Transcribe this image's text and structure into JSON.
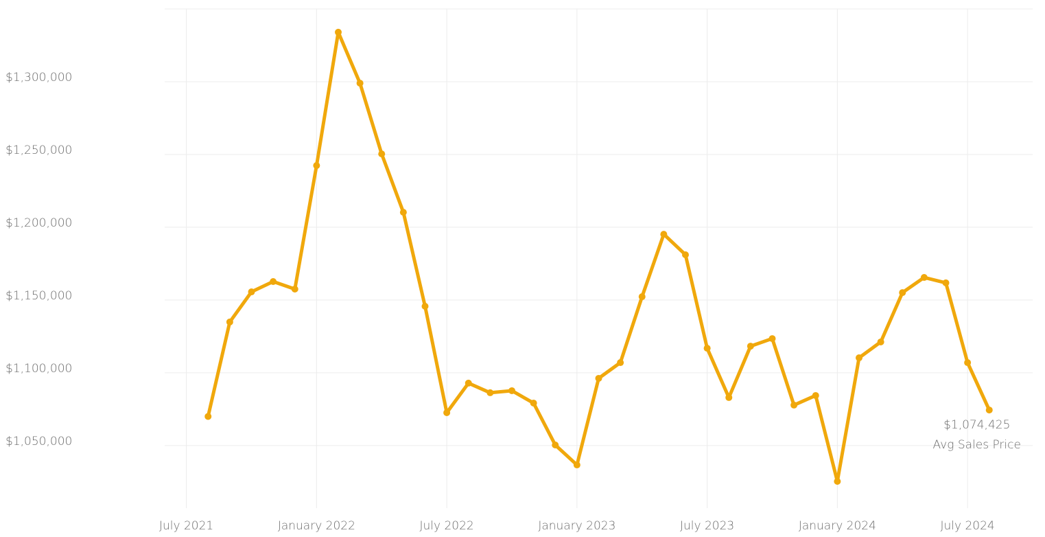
{
  "chart_data": {
    "type": "line",
    "x": [
      "2021-08",
      "2021-09",
      "2021-10",
      "2021-11",
      "2021-12",
      "2022-01",
      "2022-02",
      "2022-03",
      "2022-04",
      "2022-05",
      "2022-06",
      "2022-07",
      "2022-08",
      "2022-09",
      "2022-10",
      "2022-11",
      "2022-12",
      "2023-01",
      "2023-02",
      "2023-03",
      "2023-04",
      "2023-05",
      "2023-06",
      "2023-07",
      "2023-08",
      "2023-09",
      "2023-10",
      "2023-11",
      "2023-12",
      "2024-01",
      "2024-02",
      "2024-03",
      "2024-04",
      "2024-05",
      "2024-06",
      "2024-07",
      "2024-08"
    ],
    "series": [
      {
        "name": "Avg Sales Price",
        "color": "#f0a80c",
        "values": [
          1070000,
          1134900,
          1155600,
          1162700,
          1157500,
          1242400,
          1334000,
          1299000,
          1250400,
          1210300,
          1145700,
          1072600,
          1092900,
          1086300,
          1087700,
          1079200,
          1050400,
          1036700,
          1096200,
          1107000,
          1152300,
          1195200,
          1181100,
          1116900,
          1083000,
          1118300,
          1123500,
          1077800,
          1084400,
          1025400,
          1110300,
          1121200,
          1155100,
          1165500,
          1161800,
          1107000,
          1074425
        ],
        "value_labels": [
          null,
          null,
          null,
          null,
          null,
          null,
          null,
          null,
          null,
          null,
          null,
          null,
          null,
          null,
          null,
          null,
          null,
          null,
          null,
          null,
          null,
          null,
          null,
          null,
          null,
          null,
          null,
          null,
          null,
          null,
          null,
          null,
          null,
          null,
          null,
          null,
          "$1,074,425"
        ]
      }
    ],
    "xlim": [
      "2021-06",
      "2024-10"
    ],
    "xticks": [
      {
        "value": "2021-07",
        "label": "July 2021"
      },
      {
        "value": "2022-01",
        "label": "January 2022"
      },
      {
        "value": "2022-07",
        "label": "July 2022"
      },
      {
        "value": "2023-01",
        "label": "January 2023"
      },
      {
        "value": "2023-07",
        "label": "July 2023"
      },
      {
        "value": "2024-01",
        "label": "January 2024"
      },
      {
        "value": "2024-07",
        "label": "July 2024"
      }
    ],
    "ylim": [
      1007000,
      1350000
    ],
    "yticks": [
      {
        "value": 1050000,
        "label": "$1,050,000"
      },
      {
        "value": 1100000,
        "label": "$1,100,000"
      },
      {
        "value": 1150000,
        "label": "$1,150,000"
      },
      {
        "value": 1200000,
        "label": "$1,200,000"
      },
      {
        "value": 1250000,
        "label": "$1,250,000"
      },
      {
        "value": 1300000,
        "label": "$1,300,000"
      }
    ],
    "grid": true
  }
}
